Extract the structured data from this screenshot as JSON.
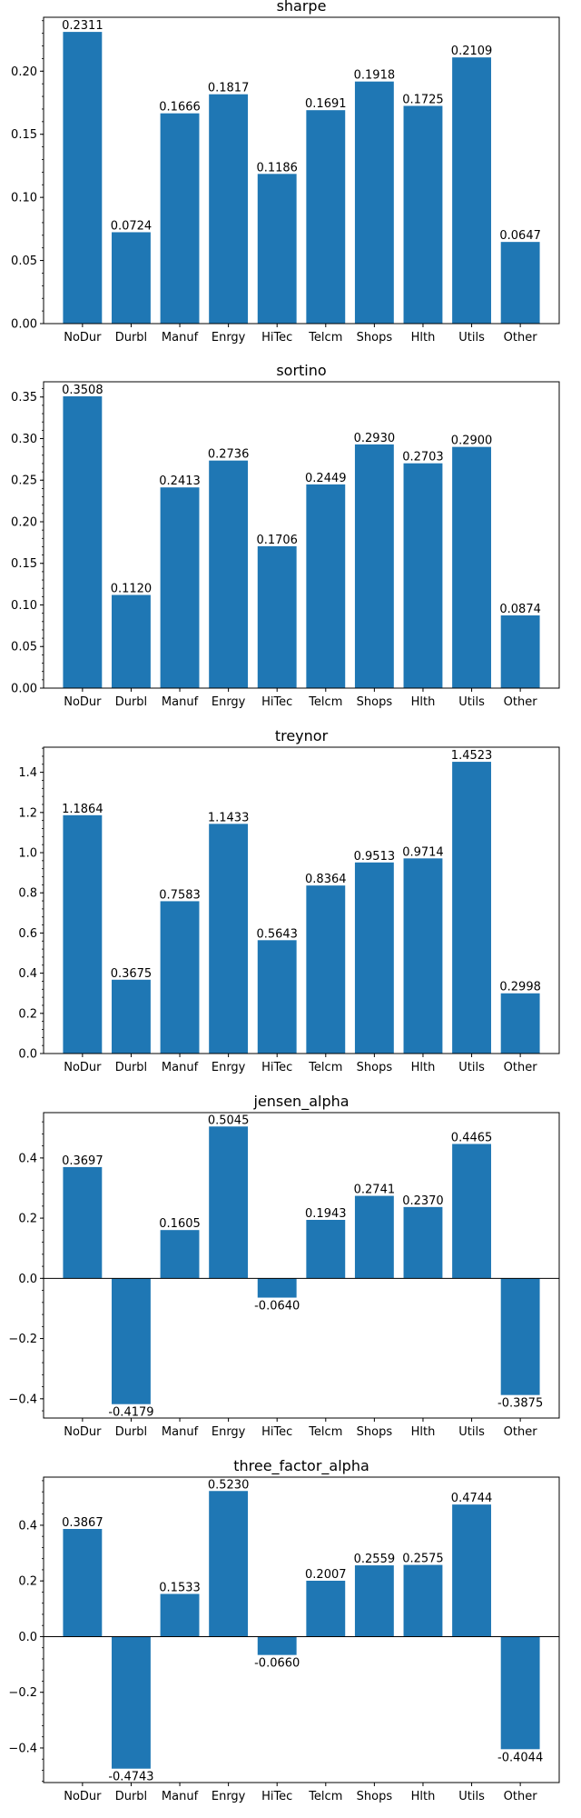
{
  "figure": {
    "bar_color": "#1f77b4",
    "axis_color": "#000000",
    "background": "#ffffff"
  },
  "chart_data": [
    {
      "type": "bar",
      "title": "sharpe",
      "categories": [
        "NoDur",
        "Durbl",
        "Manuf",
        "Enrgy",
        "HiTec",
        "Telcm",
        "Shops",
        "Hlth",
        "Utils",
        "Other"
      ],
      "values": [
        0.2311,
        0.0724,
        0.1666,
        0.1817,
        0.1186,
        0.1691,
        0.1918,
        0.1725,
        0.2109,
        0.0647
      ],
      "value_labels": [
        "0.2311",
        "0.0724",
        "0.1666",
        "0.1817",
        "0.1186",
        "0.1691",
        "0.1918",
        "0.1725",
        "0.2109",
        "0.0647"
      ],
      "ylim": [
        0,
        0.2427
      ],
      "yticks": [
        0.0,
        0.05,
        0.1,
        0.15,
        0.2
      ],
      "ytick_labels": [
        "0.00",
        "0.05",
        "0.10",
        "0.15",
        "0.20"
      ],
      "zero_line": false,
      "grid": false
    },
    {
      "type": "bar",
      "title": "sortino",
      "categories": [
        "NoDur",
        "Durbl",
        "Manuf",
        "Enrgy",
        "HiTec",
        "Telcm",
        "Shops",
        "Hlth",
        "Utils",
        "Other"
      ],
      "values": [
        0.3508,
        0.112,
        0.2413,
        0.2736,
        0.1706,
        0.2449,
        0.293,
        0.2703,
        0.29,
        0.0874
      ],
      "value_labels": [
        "0.3508",
        "0.1120",
        "0.2413",
        "0.2736",
        "0.1706",
        "0.2449",
        "0.2930",
        "0.2703",
        "0.2900",
        "0.0874"
      ],
      "ylim": [
        0,
        0.3683
      ],
      "yticks": [
        0.0,
        0.05,
        0.1,
        0.15,
        0.2,
        0.25,
        0.3,
        0.35
      ],
      "ytick_labels": [
        "0.00",
        "0.05",
        "0.10",
        "0.15",
        "0.20",
        "0.25",
        "0.30",
        "0.35"
      ],
      "zero_line": false,
      "grid": false
    },
    {
      "type": "bar",
      "title": "treynor",
      "categories": [
        "NoDur",
        "Durbl",
        "Manuf",
        "Enrgy",
        "HiTec",
        "Telcm",
        "Shops",
        "Hlth",
        "Utils",
        "Other"
      ],
      "values": [
        1.1864,
        0.3675,
        0.7583,
        1.1433,
        0.5643,
        0.8364,
        0.9513,
        0.9714,
        1.4523,
        0.2998
      ],
      "value_labels": [
        "1.1864",
        "0.3675",
        "0.7583",
        "1.1433",
        "0.5643",
        "0.8364",
        "0.9513",
        "0.9714",
        "1.4523",
        "0.2998"
      ],
      "ylim": [
        0,
        1.525
      ],
      "yticks": [
        0.0,
        0.2,
        0.4,
        0.6,
        0.8,
        1.0,
        1.2,
        1.4
      ],
      "ytick_labels": [
        "0.0",
        "0.2",
        "0.4",
        "0.6",
        "0.8",
        "1.0",
        "1.2",
        "1.4"
      ],
      "zero_line": false,
      "grid": false
    },
    {
      "type": "bar",
      "title": "jensen_alpha",
      "categories": [
        "NoDur",
        "Durbl",
        "Manuf",
        "Enrgy",
        "HiTec",
        "Telcm",
        "Shops",
        "Hlth",
        "Utils",
        "Other"
      ],
      "values": [
        0.3697,
        -0.4179,
        0.1605,
        0.5045,
        -0.064,
        0.1943,
        0.2741,
        0.237,
        0.4465,
        -0.3875
      ],
      "value_labels": [
        "0.3697",
        "-0.4179",
        "0.1605",
        "0.5045",
        "-0.0640",
        "0.1943",
        "0.2741",
        "0.2370",
        "0.4465",
        "-0.3875"
      ],
      "ylim": [
        -0.464,
        0.5506
      ],
      "yticks": [
        -0.4,
        -0.2,
        0.0,
        0.2,
        0.4
      ],
      "ytick_labels": [
        "−0.4",
        "−0.2",
        "0.0",
        "0.2",
        "0.4"
      ],
      "zero_line": true,
      "grid": false
    },
    {
      "type": "bar",
      "title": "three_factor_alpha",
      "categories": [
        "NoDur",
        "Durbl",
        "Manuf",
        "Enrgy",
        "HiTec",
        "Telcm",
        "Shops",
        "Hlth",
        "Utils",
        "Other"
      ],
      "values": [
        0.3867,
        -0.4743,
        0.1533,
        0.523,
        -0.066,
        0.2007,
        0.2559,
        0.2575,
        0.4744,
        -0.4044
      ],
      "value_labels": [
        "0.3867",
        "-0.4743",
        "0.1533",
        "0.5230",
        "-0.0660",
        "0.2007",
        "0.2559",
        "0.2575",
        "0.4744",
        "-0.4044"
      ],
      "ylim": [
        -0.5242,
        0.5728
      ],
      "yticks": [
        -0.4,
        -0.2,
        0.0,
        0.2,
        0.4
      ],
      "ytick_labels": [
        "−0.4",
        "−0.2",
        "0.0",
        "0.2",
        "0.4"
      ],
      "zero_line": true,
      "grid": false
    }
  ]
}
